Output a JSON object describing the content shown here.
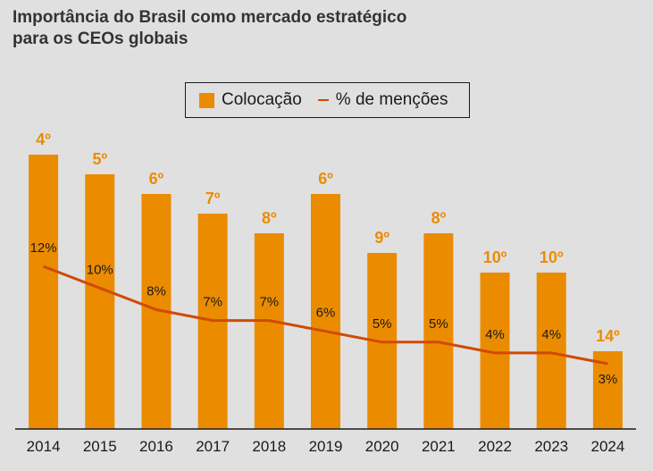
{
  "title": {
    "line1": "Importância do Brasil como mercado estratégico",
    "line2": "para os CEOs globais"
  },
  "legend": {
    "bar_label": "Colocação",
    "line_label": "% de menções"
  },
  "colors": {
    "bar": "#eb8c00",
    "line": "#d04a02",
    "background": "#e0e0e0",
    "axis": "#1a1a1a"
  },
  "chart_data": {
    "type": "bar",
    "categories": [
      "2014",
      "2015",
      "2016",
      "2017",
      "2018",
      "2019",
      "2020",
      "2021",
      "2022",
      "2023",
      "2024"
    ],
    "series": [
      {
        "name": "Colocação",
        "type": "bar",
        "values": [
          4,
          5,
          6,
          7,
          8,
          6,
          9,
          8,
          10,
          10,
          14
        ],
        "labels": [
          "4º",
          "5º",
          "6º",
          "7º",
          "8º",
          "6º",
          "9º",
          "8º",
          "10º",
          "10º",
          "14º"
        ]
      },
      {
        "name": "% de menções",
        "type": "line",
        "values": [
          12,
          10,
          8,
          7,
          7,
          6,
          5,
          5,
          4,
          4,
          3
        ],
        "labels": [
          "12%",
          "10%",
          "8%",
          "7%",
          "7%",
          "6%",
          "5%",
          "5%",
          "4%",
          "4%",
          "3%"
        ]
      }
    ],
    "legend": "top-center",
    "grid": false
  }
}
